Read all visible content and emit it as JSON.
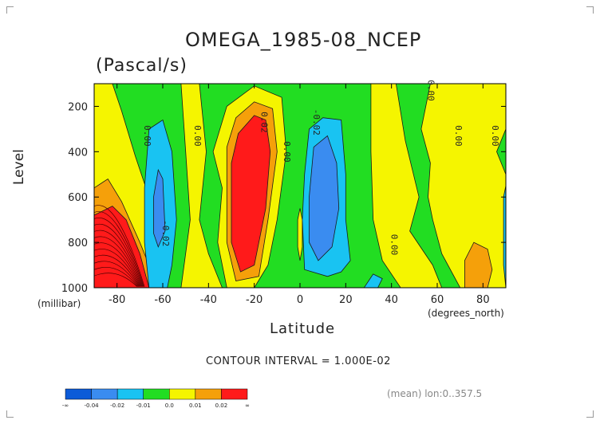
{
  "chart_data": {
    "type": "heatmap",
    "title": "OMEGA_1985-08_NCEP",
    "units": "(Pascal/s)",
    "xlabel": "Latitude",
    "xlabel_units": "(degrees_north)",
    "ylabel": "Level",
    "ylabel_units": "(millibar)",
    "xlim": [
      -90,
      90
    ],
    "ylim": [
      1000,
      100
    ],
    "x_ticks": [
      -80,
      -60,
      -40,
      -20,
      0,
      20,
      40,
      60,
      80
    ],
    "y_ticks": [
      200,
      400,
      600,
      800,
      1000
    ],
    "contour_interval": "CONTOUR INTERVAL = 1.000E-02",
    "contour_labels": [
      {
        "text": "0.00",
        "lat": -68,
        "level": 330
      },
      {
        "text": "0.00",
        "lat": -46,
        "level": 330
      },
      {
        "text": "-0.02",
        "lat": -60,
        "level": 760
      },
      {
        "text": "0.02",
        "lat": -17,
        "level": 270
      },
      {
        "text": "0.00",
        "lat": -7,
        "level": 400
      },
      {
        "text": "-0.02",
        "lat": 6,
        "level": 270
      },
      {
        "text": "0.00",
        "lat": 40,
        "level": 810
      },
      {
        "text": "0.00",
        "lat": 56,
        "level": 130
      },
      {
        "text": "0.00",
        "lat": 68,
        "level": 330
      },
      {
        "text": "0.00",
        "lat": 84,
        "level": 330
      }
    ],
    "legend": {
      "labels": [
        "-∞",
        "-0.04",
        "-0.02",
        "-0.01",
        "0.0",
        "0.01",
        "0.02",
        "∞"
      ],
      "colors": [
        "#0c5bd8",
        "#3a8cf0",
        "#19c3f2",
        "#22dd22",
        "#f5f500",
        "#f5a00a",
        "#ff1a1a"
      ]
    },
    "mean_note": "(mean) lon:0..357.5",
    "colors": {
      "green": "#22dd22",
      "yellow": "#f5f500",
      "orange": "#f5a00a",
      "red": "#ff1a1a",
      "cyan": "#19c3f2",
      "blue": "#3a8cf0",
      "dark_blue": "#0c5bd8"
    }
  }
}
